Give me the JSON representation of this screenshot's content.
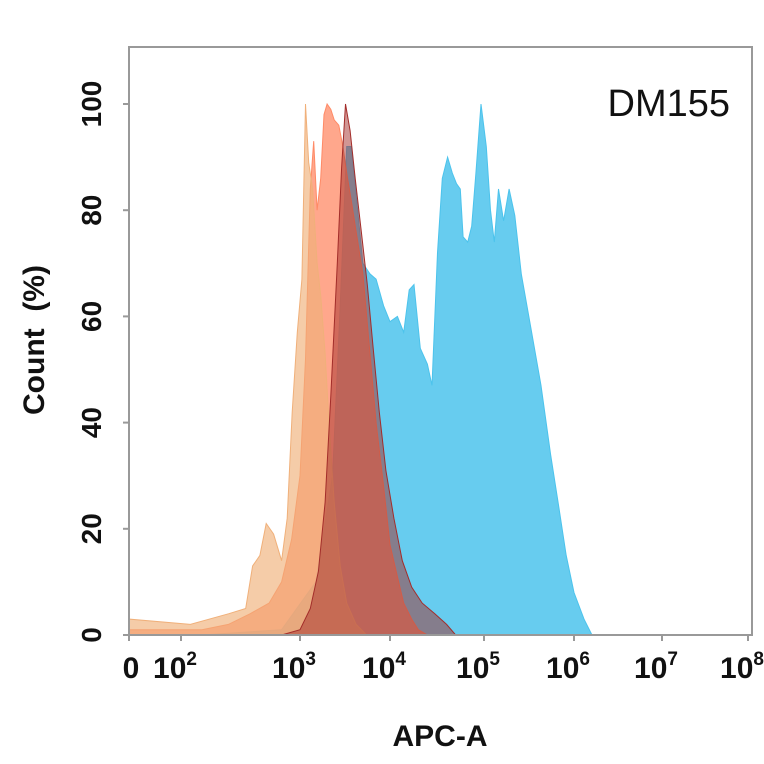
{
  "chart_data": {
    "type": "area",
    "annotation": "DM155",
    "xlabel": "APC-A",
    "ylabel": "Count  (%)",
    "x_scale": "log",
    "xlim": [
      0,
      100000000
    ],
    "ylim": [
      0,
      110
    ],
    "grid": false,
    "legend": "none",
    "x_ticks": [
      {
        "value": 0,
        "base": "0",
        "exp": ""
      },
      {
        "value": 100,
        "base": "10",
        "exp": "2"
      },
      {
        "value": 1000,
        "base": "10",
        "exp": "3"
      },
      {
        "value": 10000,
        "base": "10",
        "exp": "4"
      },
      {
        "value": 100000,
        "base": "10",
        "exp": "5"
      },
      {
        "value": 1000000,
        "base": "10",
        "exp": "6"
      },
      {
        "value": 10000000,
        "base": "10",
        "exp": "7"
      },
      {
        "value": 100000000,
        "base": "10",
        "exp": "8"
      }
    ],
    "y_ticks": [
      0,
      20,
      40,
      60,
      80,
      100
    ],
    "series": [
      {
        "color": "#4cc3ec",
        "opacity": 0.85,
        "points": [
          [
            150,
            0
          ],
          [
            700,
            1
          ],
          [
            1500,
            10
          ],
          [
            2300,
            30
          ],
          [
            2800,
            62
          ],
          [
            3300,
            92
          ],
          [
            3700,
            92
          ],
          [
            4200,
            83
          ],
          [
            5000,
            70
          ],
          [
            6000,
            68
          ],
          [
            7000,
            67
          ],
          [
            8500,
            62
          ],
          [
            10000,
            59
          ],
          [
            12000,
            60
          ],
          [
            14000,
            57
          ],
          [
            16000,
            65
          ],
          [
            18000,
            66
          ],
          [
            21000,
            54
          ],
          [
            25000,
            51
          ],
          [
            28000,
            47
          ],
          [
            32000,
            72
          ],
          [
            36000,
            86
          ],
          [
            41000,
            90
          ],
          [
            46000,
            87
          ],
          [
            51000,
            85
          ],
          [
            56000,
            84
          ],
          [
            60000,
            75
          ],
          [
            67000,
            74
          ],
          [
            74000,
            77
          ],
          [
            82000,
            87
          ],
          [
            93000,
            100
          ],
          [
            106000,
            92
          ],
          [
            118000,
            80
          ],
          [
            130000,
            74
          ],
          [
            145000,
            84
          ],
          [
            165000,
            78
          ],
          [
            190000,
            84
          ],
          [
            220000,
            79
          ],
          [
            260000,
            68
          ],
          [
            330000,
            58
          ],
          [
            430000,
            47
          ],
          [
            550000,
            34
          ],
          [
            680000,
            24
          ],
          [
            820000,
            15
          ],
          [
            1000000,
            8
          ],
          [
            1300000,
            3
          ],
          [
            1600000,
            0
          ]
        ]
      },
      {
        "color": "#ff8a66",
        "opacity": 0.75,
        "points": [
          [
            0,
            1
          ],
          [
            150,
            1
          ],
          [
            250,
            2
          ],
          [
            380,
            4
          ],
          [
            550,
            6
          ],
          [
            700,
            10
          ],
          [
            850,
            18
          ],
          [
            1000,
            30
          ],
          [
            1150,
            52
          ],
          [
            1300,
            84
          ],
          [
            1420,
            93
          ],
          [
            1550,
            80
          ],
          [
            1700,
            86
          ],
          [
            1850,
            98
          ],
          [
            2000,
            100
          ],
          [
            2200,
            99
          ],
          [
            2400,
            97
          ],
          [
            2700,
            96
          ],
          [
            3000,
            92
          ],
          [
            3300,
            87
          ],
          [
            3700,
            82
          ],
          [
            4200,
            76
          ],
          [
            5000,
            68
          ],
          [
            6000,
            53
          ],
          [
            7000,
            40
          ],
          [
            8500,
            28
          ],
          [
            10000,
            17
          ],
          [
            12000,
            11
          ],
          [
            14000,
            6
          ],
          [
            17000,
            3
          ],
          [
            20000,
            1
          ],
          [
            25000,
            0
          ]
        ]
      },
      {
        "color": "#f0b07a",
        "opacity": 0.65,
        "points": [
          [
            0,
            3
          ],
          [
            120,
            2
          ],
          [
            250,
            4
          ],
          [
            350,
            5
          ],
          [
            400,
            13
          ],
          [
            460,
            15
          ],
          [
            520,
            21
          ],
          [
            600,
            19
          ],
          [
            700,
            14
          ],
          [
            780,
            22
          ],
          [
            860,
            42
          ],
          [
            950,
            57
          ],
          [
            1050,
            67
          ],
          [
            1150,
            100
          ],
          [
            1250,
            89
          ],
          [
            1380,
            84
          ],
          [
            1550,
            70
          ],
          [
            1700,
            64
          ],
          [
            1900,
            53
          ],
          [
            2100,
            40
          ],
          [
            2400,
            25
          ],
          [
            2800,
            13
          ],
          [
            3300,
            6
          ],
          [
            4200,
            2
          ],
          [
            5500,
            0
          ]
        ]
      },
      {
        "color": "#a32d2a",
        "opacity": 0.5,
        "points": [
          [
            700,
            0
          ],
          [
            1000,
            1
          ],
          [
            1300,
            5
          ],
          [
            1600,
            12
          ],
          [
            1900,
            25
          ],
          [
            2200,
            45
          ],
          [
            2600,
            70
          ],
          [
            2900,
            88
          ],
          [
            3200,
            100
          ],
          [
            3600,
            95
          ],
          [
            4100,
            86
          ],
          [
            4800,
            76
          ],
          [
            5600,
            66
          ],
          [
            6500,
            54
          ],
          [
            7600,
            42
          ],
          [
            9000,
            31
          ],
          [
            11000,
            22
          ],
          [
            13500,
            14
          ],
          [
            17000,
            9
          ],
          [
            22000,
            6
          ],
          [
            30000,
            4
          ],
          [
            40000,
            2
          ],
          [
            50000,
            0
          ]
        ]
      }
    ]
  }
}
